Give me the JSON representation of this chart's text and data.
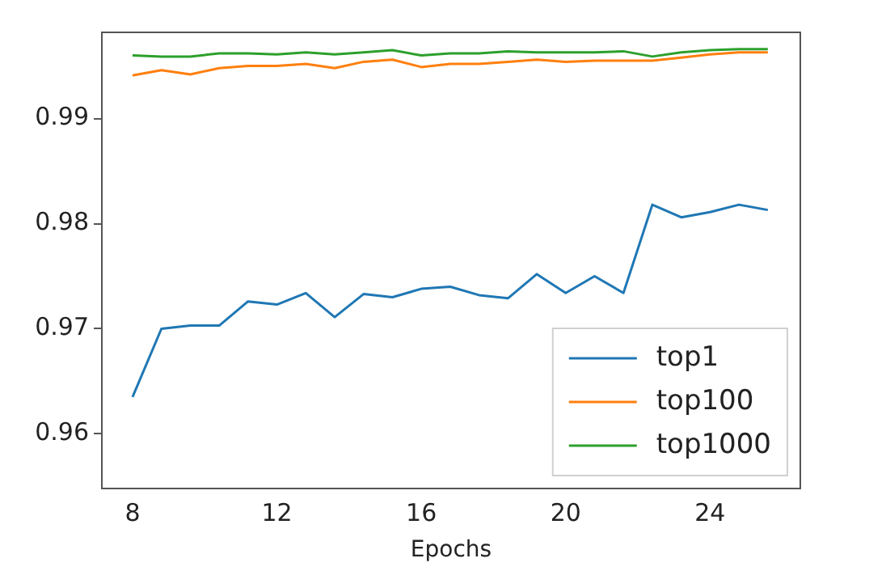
{
  "chart_data": {
    "type": "line",
    "xlabel": "Epochs",
    "x": [
      8,
      8.8,
      9.6,
      10.4,
      11.2,
      12,
      12.8,
      13.6,
      14.4,
      15.2,
      16,
      16.8,
      17.6,
      18.4,
      19.2,
      20,
      20.8,
      21.6,
      22.4,
      23.2,
      24,
      24.8,
      25.6
    ],
    "series": [
      {
        "name": "top1",
        "color": "#1f77b4",
        "values": [
          0.9635,
          0.97,
          0.9703,
          0.9703,
          0.9726,
          0.9723,
          0.9734,
          0.9711,
          0.9733,
          0.973,
          0.9738,
          0.974,
          0.9732,
          0.9729,
          0.9752,
          0.9734,
          0.975,
          0.9734,
          0.9818,
          0.9806,
          0.9811,
          0.9818,
          0.9813
        ]
      },
      {
        "name": "top100",
        "color": "#ff7f0e",
        "values": [
          0.9941,
          0.9946,
          0.9942,
          0.9948,
          0.995,
          0.995,
          0.9952,
          0.9948,
          0.9954,
          0.9956,
          0.9949,
          0.9952,
          0.9952,
          0.9954,
          0.9956,
          0.9954,
          0.9955,
          0.9955,
          0.9955,
          0.9958,
          0.9961,
          0.9963,
          0.9963
        ]
      },
      {
        "name": "top1000",
        "color": "#2ca02c",
        "values": [
          0.996,
          0.9959,
          0.9959,
          0.9962,
          0.9962,
          0.9961,
          0.9963,
          0.9961,
          0.9963,
          0.9965,
          0.996,
          0.9962,
          0.9962,
          0.9964,
          0.9963,
          0.9963,
          0.9963,
          0.9964,
          0.9959,
          0.9963,
          0.9965,
          0.9966,
          0.9966
        ]
      }
    ],
    "xlim": [
      7.15,
      26.5
    ],
    "ylim": [
      0.9548,
      0.9982
    ],
    "xticks": [
      8,
      12,
      16,
      20,
      24
    ],
    "yticks": [
      0.96,
      0.97,
      0.98,
      0.99
    ],
    "legend": "bottom right",
    "grid": false,
    "marker": "none",
    "line_style": "solid"
  }
}
